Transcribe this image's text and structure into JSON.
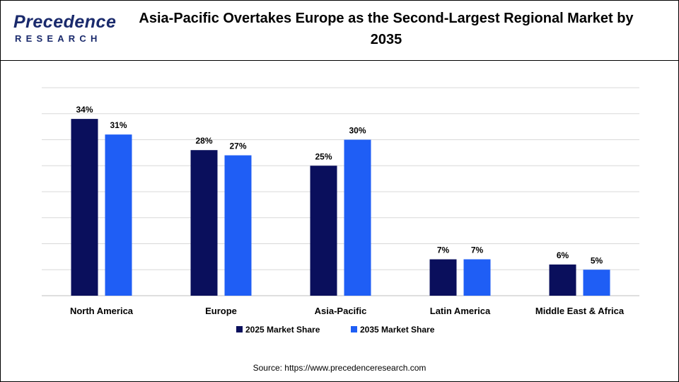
{
  "header": {
    "logo_main": "Precedence",
    "logo_sub": "RESEARCH",
    "title": "Asia-Pacific Overtakes Europe as the Second-Largest Regional Market by 2035"
  },
  "chart_data": {
    "type": "bar",
    "title": "Asia-Pacific Overtakes Europe as the Second-Largest Regional Market by 2035",
    "categories": [
      "North America",
      "Europe",
      "Asia-Pacific",
      "Latin America",
      "Middle East & Africa"
    ],
    "series": [
      {
        "name": "2025 Market Share",
        "values": [
          34,
          28,
          25,
          7,
          6
        ],
        "labels": [
          "34%",
          "28%",
          "25%",
          "7%",
          "6%"
        ],
        "color": "#0a0f5c"
      },
      {
        "name": "2035 Market Share",
        "values": [
          31,
          27,
          30,
          7,
          5
        ],
        "labels": [
          "31%",
          "27%",
          "30%",
          "7%",
          "5%"
        ],
        "color": "#1f5ef5"
      }
    ],
    "ylim": [
      0,
      40
    ],
    "grid": true,
    "legend_position": "bottom"
  },
  "source": "Source: https://www.precedenceresearch.com"
}
